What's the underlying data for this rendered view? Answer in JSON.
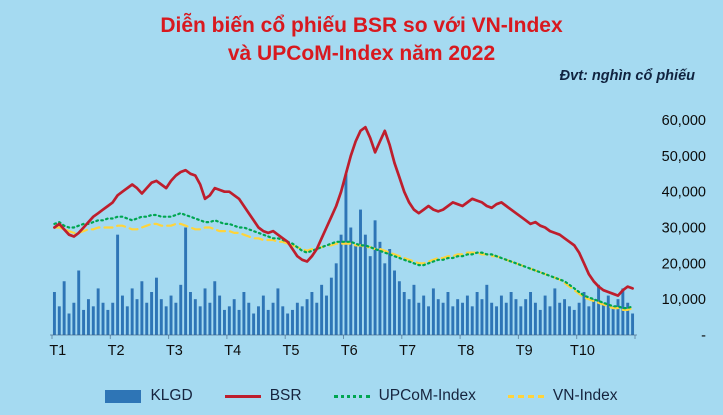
{
  "page": {
    "background": "#A5DAF1"
  },
  "header": {
    "title_line1": "Diễn biến cổ phiếu BSR so với VN-Index",
    "title_line2": "và UPCoM-Index năm 2022",
    "title_color": "#D8191F",
    "unit_label": "Đvt: nghìn cổ phiếu"
  },
  "legend": {
    "items": [
      {
        "label": "KLGD",
        "swatch": "bar",
        "color": "#2E75B6"
      },
      {
        "label": "BSR",
        "swatch": "solid",
        "color": "#BE1E2D"
      },
      {
        "label": "UPCoM-Index",
        "swatch": "dotted",
        "color": "#00A651"
      },
      {
        "label": "VN-Index",
        "swatch": "dashed",
        "color": "#FFD43B"
      }
    ]
  },
  "chart_data": {
    "type": "bar",
    "title": "Diễn biến cổ phiếu BSR so với VN-Index và UPCoM-Index năm 2022",
    "unit": "nghìn cổ phiếu",
    "x_labels": [
      "T1",
      "T2",
      "T3",
      "T4",
      "T5",
      "T6",
      "T7",
      "T8",
      "T9",
      "T10"
    ],
    "points_per_month": 12,
    "ylim": [
      0,
      60000
    ],
    "grid": false,
    "legend_position": "bottom",
    "y_ticks": {
      "labels": [
        "60,000",
        "50,000",
        "40,000",
        "30,000",
        "20,000",
        "10,000",
        "-"
      ],
      "values": [
        60000,
        50000,
        40000,
        30000,
        20000,
        10000,
        0
      ]
    },
    "series": [
      {
        "name": "KLGD",
        "type": "bar",
        "color": "#2E75B6",
        "values": [
          12000,
          8000,
          15000,
          6000,
          9000,
          18000,
          7000,
          10000,
          8000,
          13000,
          9000,
          7000,
          9000,
          28000,
          11000,
          8000,
          13000,
          10000,
          15000,
          9000,
          12000,
          16000,
          10000,
          8000,
          11000,
          9000,
          14000,
          30000,
          12000,
          10000,
          8000,
          13000,
          9000,
          15000,
          11000,
          7000,
          8000,
          10000,
          7000,
          12000,
          9000,
          6000,
          8000,
          11000,
          7000,
          9000,
          13000,
          8000,
          6000,
          7000,
          9000,
          8000,
          10000,
          12000,
          9000,
          14000,
          11000,
          16000,
          20000,
          28000,
          45000,
          30000,
          25000,
          35000,
          28000,
          22000,
          32000,
          26000,
          20000,
          24000,
          18000,
          15000,
          12000,
          10000,
          14000,
          9000,
          11000,
          8000,
          13000,
          10000,
          9000,
          12000,
          8000,
          10000,
          9000,
          11000,
          8000,
          12000,
          10000,
          14000,
          9000,
          8000,
          11000,
          9000,
          12000,
          10000,
          8000,
          10000,
          12000,
          9000,
          7000,
          11000,
          8000,
          13000,
          9000,
          10000,
          8000,
          7000,
          9000,
          12000,
          8000,
          10000,
          14000,
          9000,
          11000,
          8000,
          10000,
          13000,
          9000,
          6000
        ]
      },
      {
        "name": "VN-Index",
        "type": "line",
        "style": "dashed",
        "color": "#FFD43B",
        "values": [
          30000,
          30000,
          29500,
          29000,
          28500,
          28500,
          29000,
          29500,
          29500,
          30000,
          30000,
          30000,
          30000,
          30500,
          30500,
          30000,
          29500,
          29500,
          30000,
          30500,
          31000,
          31000,
          30500,
          30500,
          30500,
          31000,
          31000,
          30500,
          30000,
          29500,
          29500,
          30000,
          30000,
          29500,
          29000,
          29000,
          29000,
          28500,
          28500,
          28000,
          27500,
          27000,
          27000,
          26500,
          26500,
          26500,
          26000,
          26000,
          25500,
          25000,
          24500,
          24000,
          23500,
          24000,
          24000,
          24500,
          25000,
          25000,
          25500,
          25500,
          25500,
          25500,
          25000,
          25000,
          24500,
          24500,
          24000,
          24000,
          23500,
          23000,
          22500,
          22000,
          21500,
          21000,
          20500,
          20000,
          20000,
          20500,
          21000,
          21500,
          21500,
          22000,
          22000,
          22500,
          22500,
          23000,
          23000,
          23000,
          22500,
          22500,
          22000,
          22000,
          21500,
          21000,
          20500,
          20000,
          19500,
          19000,
          18500,
          18000,
          17500,
          17000,
          16500,
          16000,
          15500,
          14500,
          13500,
          12500,
          11500,
          10500,
          10000,
          9500,
          9000,
          8500,
          8000,
          7500,
          7500,
          7000,
          7000,
          7500
        ]
      },
      {
        "name": "UPCoM-Index",
        "type": "line",
        "style": "dotted",
        "color": "#00A651",
        "values": [
          31000,
          31500,
          30500,
          30000,
          30000,
          30500,
          31000,
          31000,
          31500,
          32000,
          32000,
          32500,
          32500,
          33000,
          33000,
          32500,
          32000,
          32500,
          33000,
          33000,
          33500,
          33500,
          33000,
          33000,
          33000,
          33500,
          34000,
          33500,
          33000,
          32500,
          32000,
          31500,
          31500,
          32000,
          31500,
          31000,
          31000,
          30500,
          30000,
          30000,
          29500,
          29000,
          28500,
          28000,
          27500,
          27000,
          27000,
          26500,
          26000,
          25500,
          24500,
          23500,
          23000,
          23500,
          24000,
          24500,
          25000,
          25500,
          26000,
          26000,
          26000,
          26000,
          25500,
          25000,
          25000,
          24500,
          24000,
          23500,
          23000,
          22500,
          22000,
          21500,
          21000,
          20500,
          20000,
          19500,
          19500,
          20000,
          20500,
          21000,
          21000,
          21500,
          21500,
          22000,
          22000,
          22500,
          22500,
          23000,
          23000,
          22500,
          22500,
          22000,
          21500,
          21000,
          20500,
          20000,
          19500,
          19000,
          18500,
          18000,
          17500,
          17000,
          16500,
          16000,
          15500,
          15000,
          14000,
          13000,
          12000,
          11000,
          10500,
          10000,
          9500,
          9000,
          8500,
          8000,
          8000,
          7500,
          7500,
          8000
        ]
      },
      {
        "name": "BSR",
        "type": "line",
        "style": "solid",
        "color": "#BE1E2D",
        "values": [
          30000,
          31000,
          29500,
          28000,
          27500,
          28500,
          30000,
          31500,
          33000,
          34000,
          35000,
          36000,
          37000,
          39000,
          40000,
          41000,
          42000,
          41000,
          39500,
          41000,
          42500,
          43000,
          42000,
          41000,
          43000,
          44500,
          45500,
          46000,
          45000,
          44500,
          42000,
          38000,
          39000,
          41000,
          40500,
          40000,
          40000,
          39000,
          38000,
          36000,
          34000,
          32000,
          30000,
          29000,
          28500,
          29000,
          28000,
          27000,
          26000,
          24000,
          22000,
          21000,
          20500,
          22000,
          24000,
          27000,
          30000,
          33000,
          36000,
          40000,
          45000,
          50000,
          54000,
          57000,
          58000,
          55000,
          51000,
          54000,
          57000,
          53000,
          48000,
          44000,
          40000,
          37000,
          35000,
          34000,
          35000,
          36000,
          35000,
          34500,
          35000,
          36000,
          37000,
          36500,
          36000,
          37000,
          38000,
          37500,
          37000,
          36000,
          35500,
          36500,
          37000,
          36000,
          35000,
          34000,
          33000,
          32000,
          31000,
          31500,
          30500,
          30000,
          29000,
          28500,
          28000,
          27000,
          26000,
          25000,
          23000,
          20000,
          17000,
          15000,
          13500,
          12500,
          12000,
          11500,
          11000,
          12500,
          13500,
          13000
        ]
      }
    ]
  }
}
